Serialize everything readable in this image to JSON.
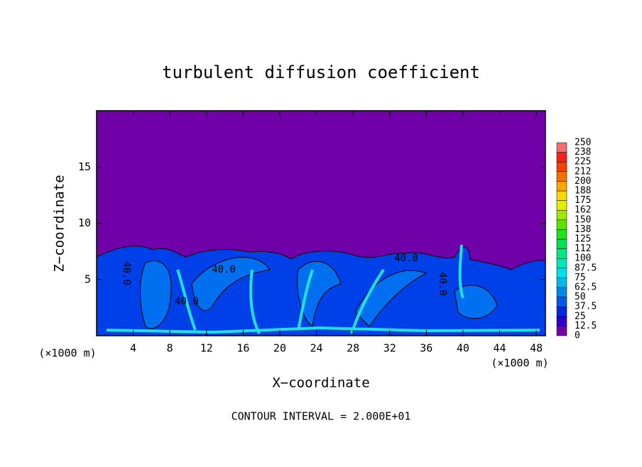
{
  "chart_data": {
    "type": "contour",
    "title": "turbulent diffusion coefficient",
    "x_label": "X−coordinate",
    "y_label": "Z−coordinate",
    "x_unit_left": "(×1000 m)",
    "x_unit_right": "(×1000 m)",
    "footnote": "CONTOUR INTERVAL = 2.000E+01",
    "xlim": [
      0,
      49
    ],
    "ylim": [
      0,
      20
    ],
    "xticks": [
      4,
      8,
      12,
      16,
      20,
      24,
      28,
      32,
      36,
      40,
      44,
      48
    ],
    "yticks": [
      5,
      10,
      15
    ],
    "contour_labels": [
      "40.0",
      "40.0",
      "40.0",
      "40.0",
      "40.0"
    ],
    "colorbar": {
      "levels": [
        0,
        12.5,
        25,
        37.5,
        50,
        62.5,
        75,
        87.5,
        100,
        112,
        125,
        138,
        150,
        162,
        175,
        188,
        200,
        212,
        225,
        238,
        250
      ],
      "colors": [
        "#7000a8",
        "#2c00c8",
        "#0028e0",
        "#0058f0",
        "#0088f0",
        "#00b8f0",
        "#00e0e8",
        "#00e8b8",
        "#00e888",
        "#00e050",
        "#20e020",
        "#60e000",
        "#a0e800",
        "#e0f000",
        "#f8d800",
        "#f8a800",
        "#f87000",
        "#f84000",
        "#f82020",
        "#f07070"
      ]
    }
  }
}
